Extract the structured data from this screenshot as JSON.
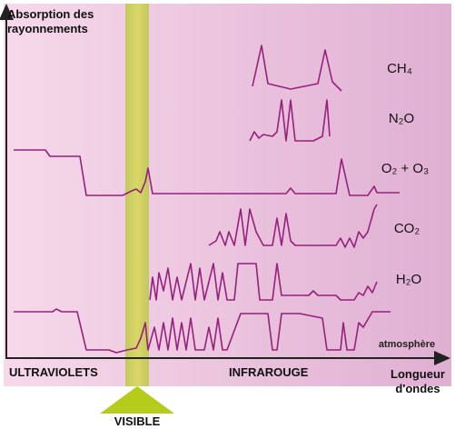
{
  "axes": {
    "y_label": [
      "Absorption des",
      "rayonnements"
    ],
    "x_label": [
      "Longueur",
      "d'ondes"
    ]
  },
  "regions": {
    "uv": "ULTRAVIOLETS",
    "ir": "INFRAROUGE",
    "visible": "VISIBLE"
  },
  "spectra": [
    {
      "label": "CH₄"
    },
    {
      "label": "N₂O"
    },
    {
      "label": "O₂ + O₃"
    },
    {
      "label": "CO₂"
    },
    {
      "label": "H₂O"
    },
    {
      "label": "atmosphère"
    }
  ]
}
